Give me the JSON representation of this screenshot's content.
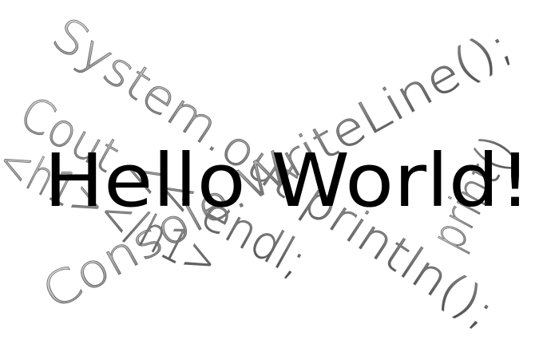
{
  "title": "Hello World!",
  "snippets": [
    "System.out.println();",
    "Console.WriteLine();",
    "Cout << endl;",
    "<h1></h1>",
    "print()"
  ]
}
